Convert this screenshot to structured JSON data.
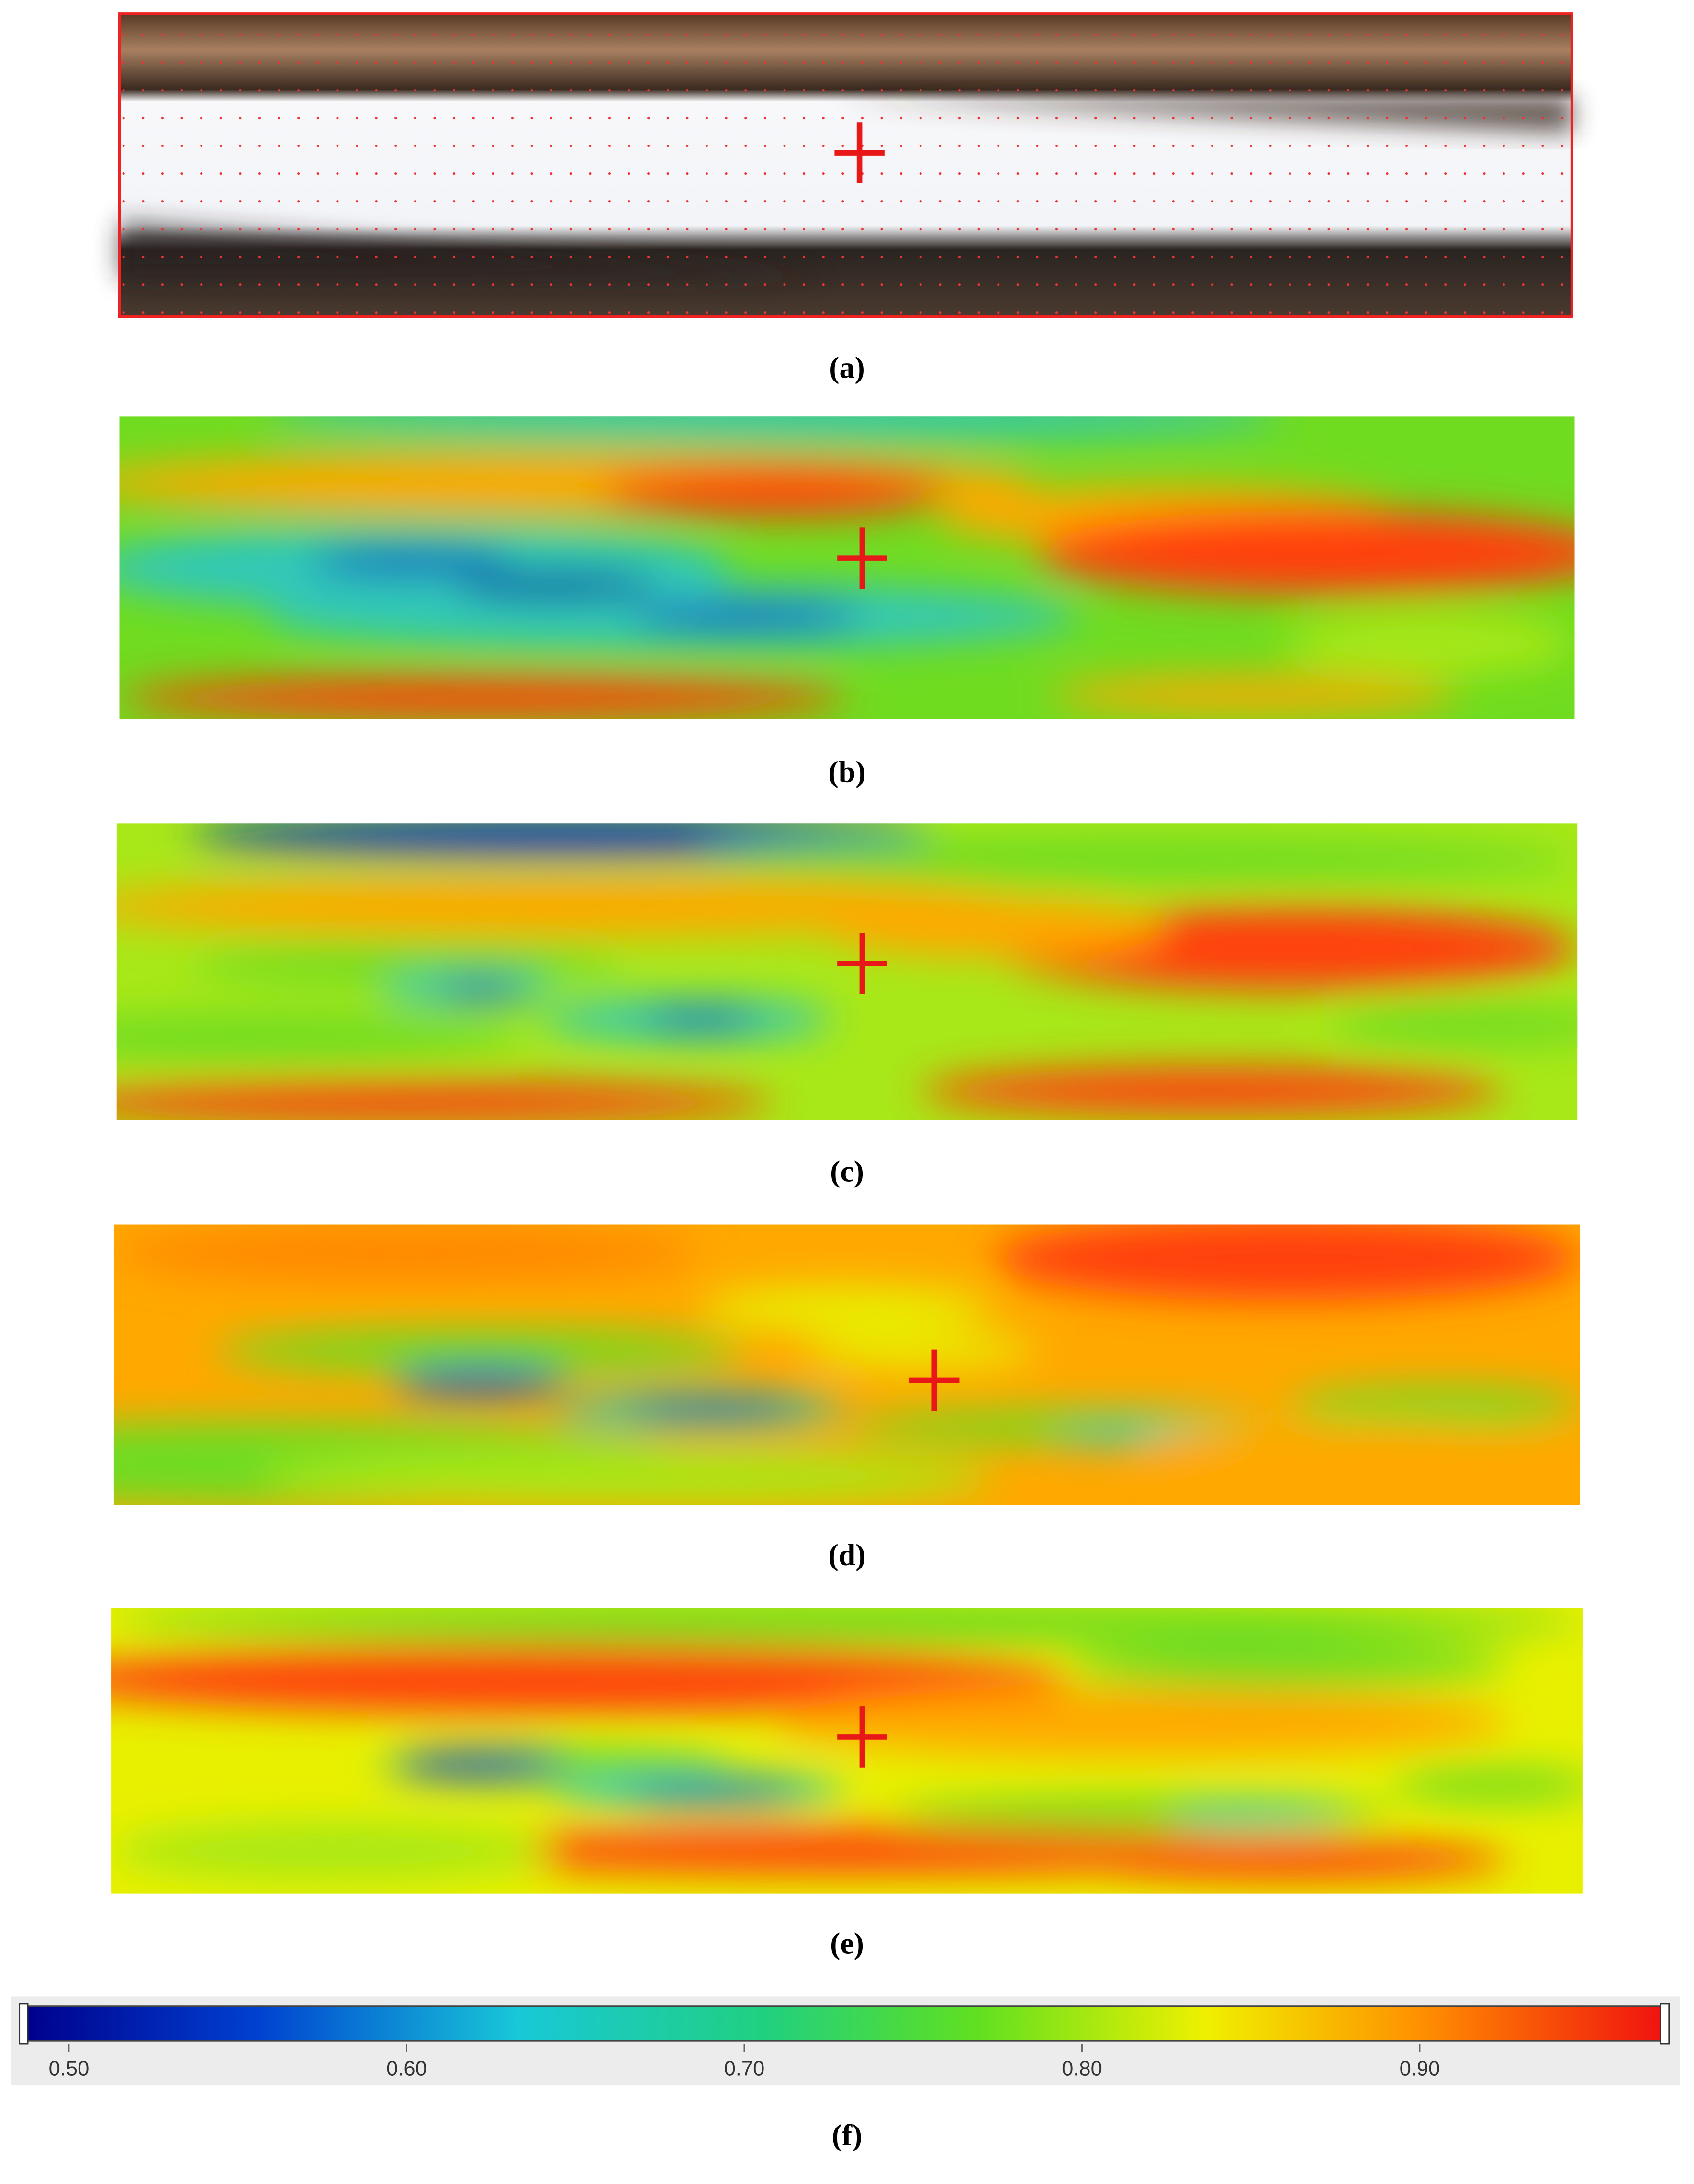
{
  "figure": {
    "panels": [
      {
        "label": "(a)"
      },
      {
        "label": "(b)"
      },
      {
        "label": "(c)"
      },
      {
        "label": "(d)"
      },
      {
        "label": "(e)"
      }
    ],
    "colorbar": {
      "label": "(f)",
      "range": [
        0.487,
        0.973
      ],
      "ticks": [
        {
          "value": 0.5,
          "label": "0.50"
        },
        {
          "value": 0.6,
          "label": "0.60"
        },
        {
          "value": 0.7,
          "label": "0.70"
        },
        {
          "value": 0.8,
          "label": "0.80"
        },
        {
          "value": 0.9,
          "label": "0.90"
        }
      ]
    }
  }
}
